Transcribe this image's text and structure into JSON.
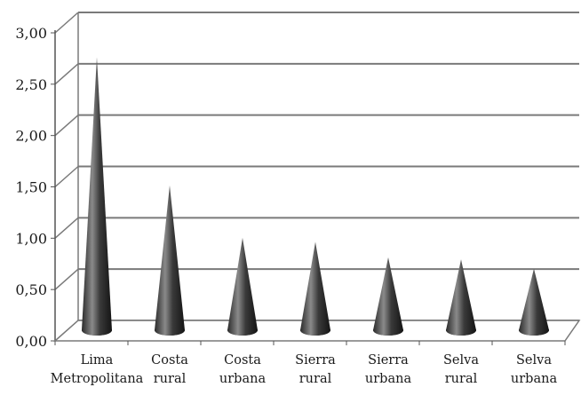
{
  "chart_data": {
    "type": "bar",
    "bar_shape": "cone",
    "style": "3d",
    "categories": [
      [
        "Lima",
        "Metropolitana"
      ],
      [
        "Costa",
        "rural"
      ],
      [
        "Costa",
        "urbana"
      ],
      [
        "Sierra",
        "rural"
      ],
      [
        "Sierra",
        "urbana"
      ],
      [
        "Selva",
        "rural"
      ],
      [
        "Selva",
        "urbana"
      ]
    ],
    "values": [
      2.66,
      1.41,
      0.9,
      0.86,
      0.71,
      0.69,
      0.6
    ],
    "y_ticks": [
      "0,00",
      "0,50",
      "1,00",
      "1,50",
      "2,00",
      "2,50",
      "3,00"
    ],
    "ylim": [
      0,
      3
    ],
    "grid": true,
    "legend": "none",
    "title": "",
    "xlabel": "",
    "ylabel": "",
    "colors": {
      "cone_dark": "#1c1c1c",
      "cone_mid": "#3a3a3a",
      "cone_light": "#8a8a8a",
      "grid": "#7a7a7a",
      "axis": "#555555"
    }
  }
}
